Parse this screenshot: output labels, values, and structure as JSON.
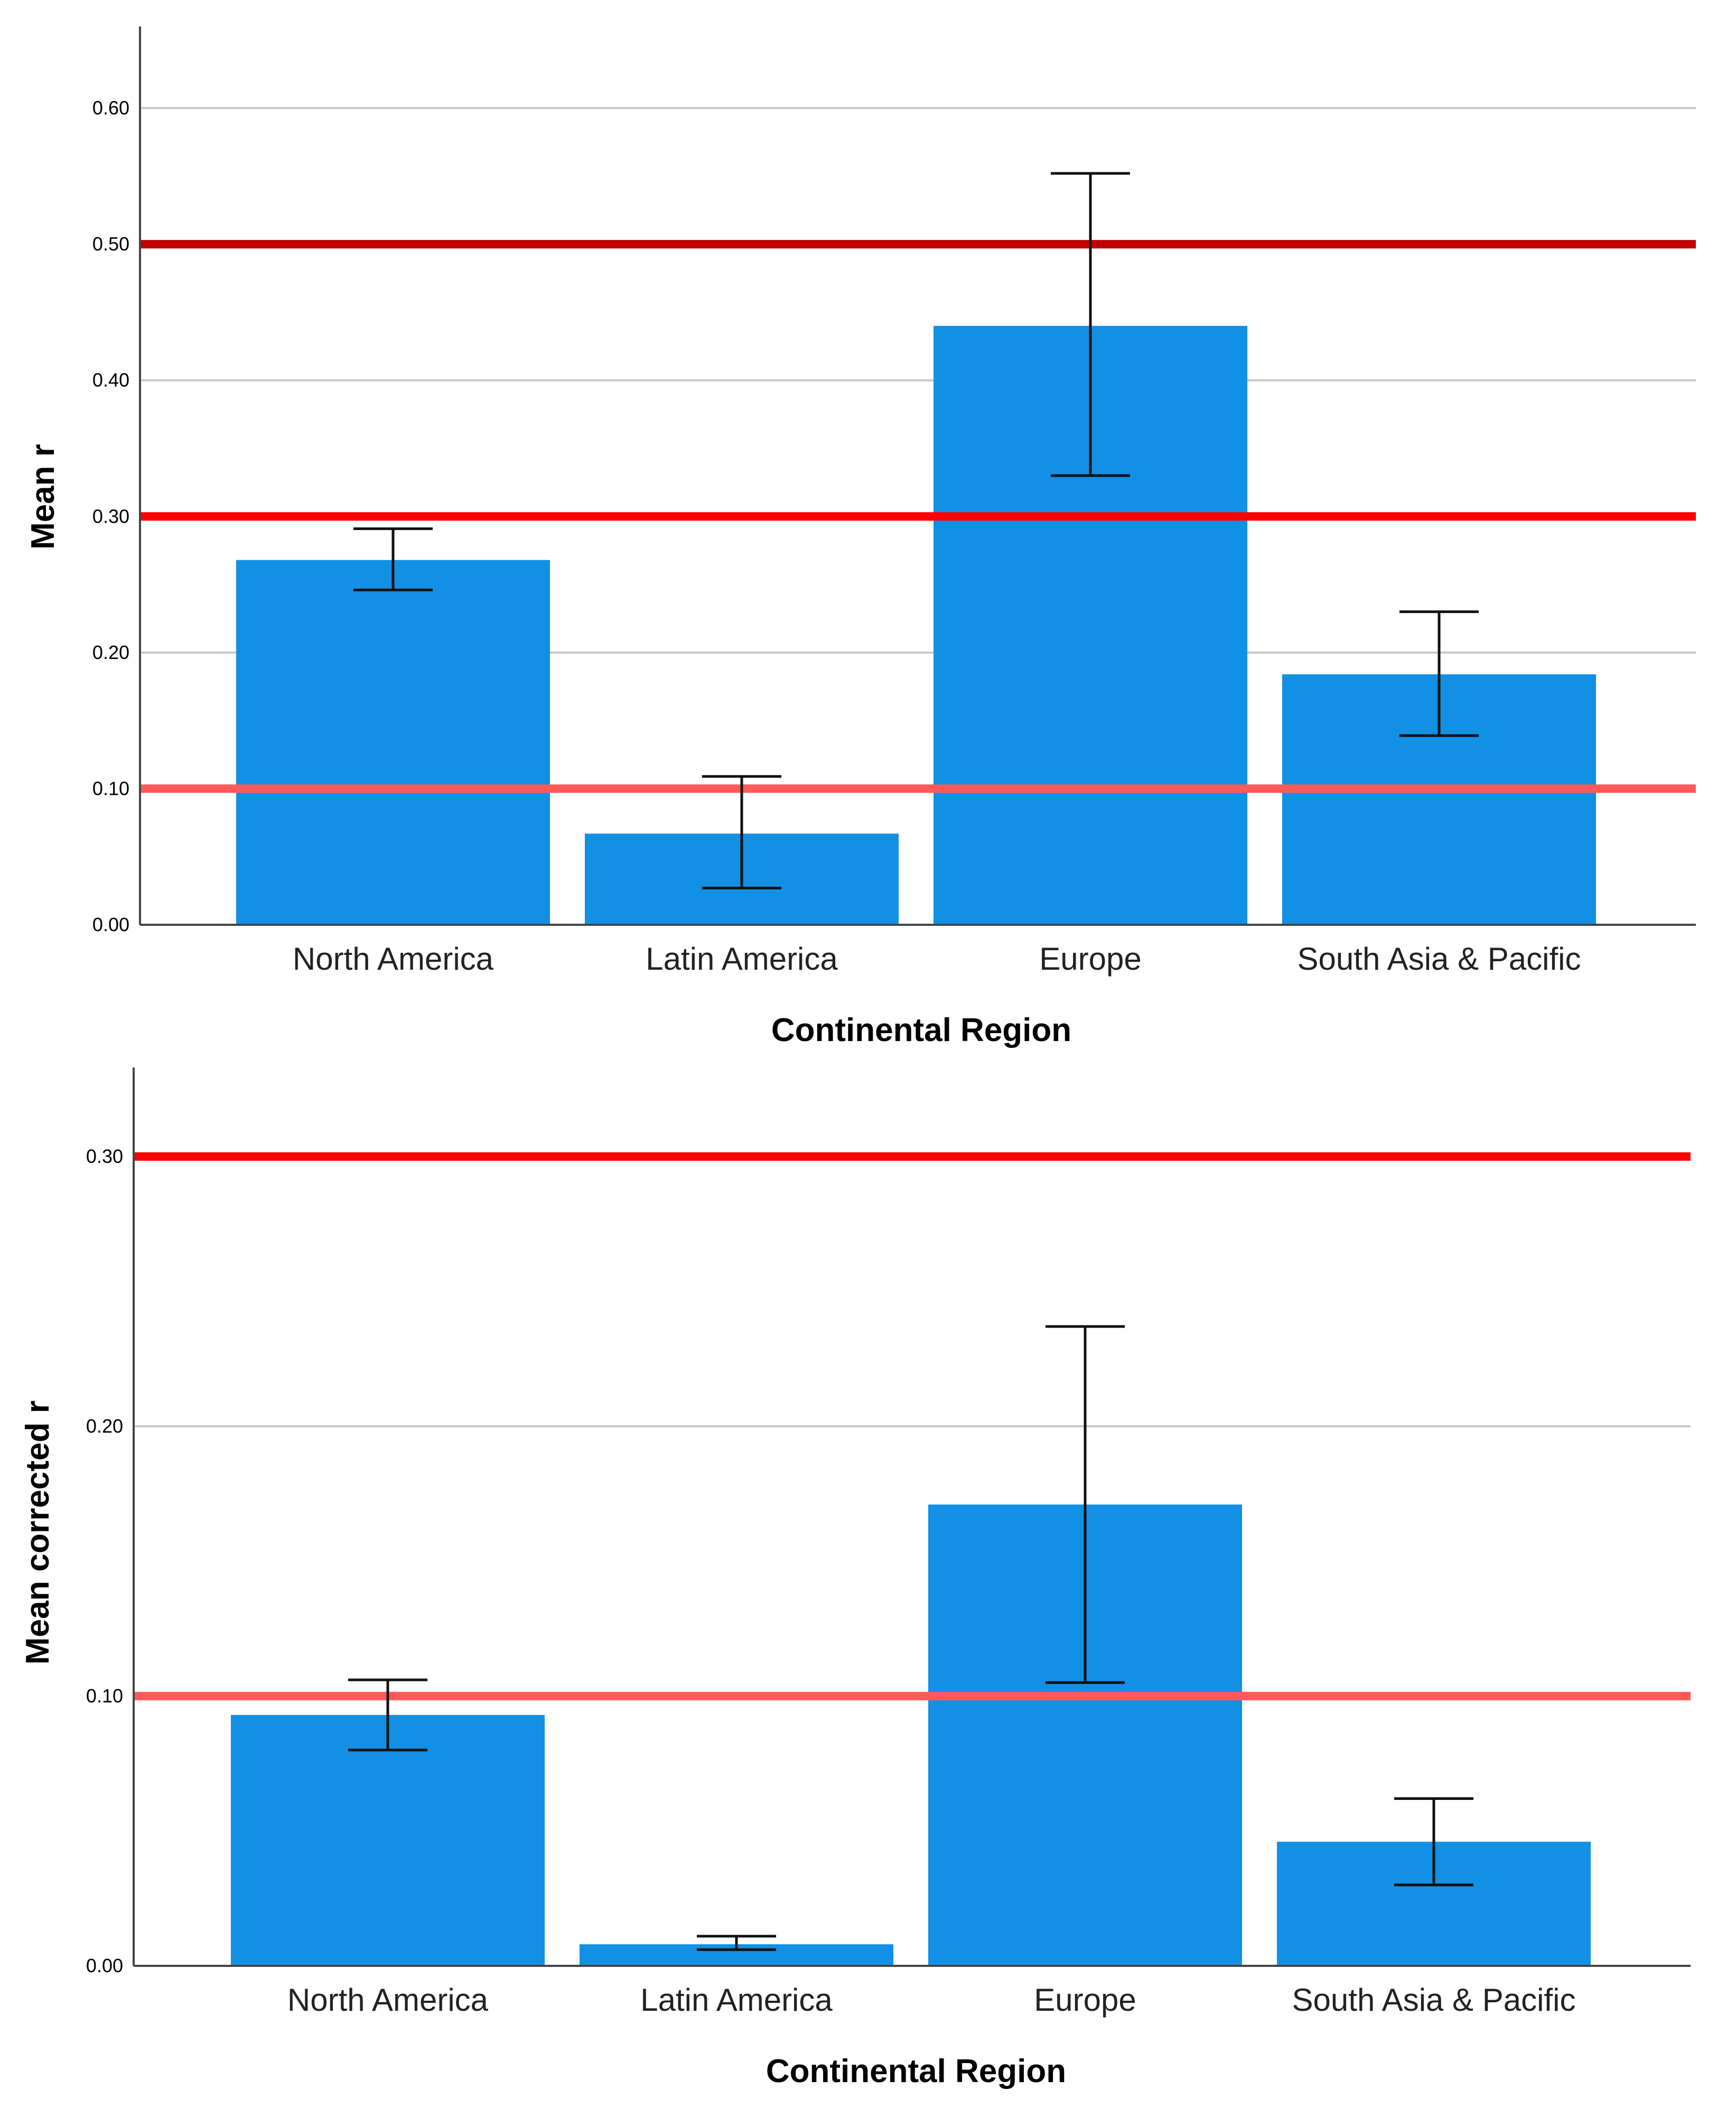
{
  "chart_data": [
    {
      "type": "bar",
      "title": "",
      "xlabel": "Continental Region",
      "ylabel": "Mean r",
      "ylim": [
        0,
        0.66
      ],
      "yticks": [
        0.0,
        0.1,
        0.2,
        0.3,
        0.4,
        0.5,
        0.6
      ],
      "ytick_labels": [
        "0.00",
        "0.10",
        "0.20",
        "0.30",
        "0.40",
        "0.50",
        "0.60"
      ],
      "grid": true,
      "categories": [
        "North America",
        "Latin America",
        "Europe",
        "South Asia & Pacific"
      ],
      "values": [
        0.268,
        0.067,
        0.44,
        0.184
      ],
      "error_low": [
        0.246,
        0.027,
        0.33,
        0.139
      ],
      "error_high": [
        0.291,
        0.109,
        0.552,
        0.23
      ],
      "reference_lines": [
        {
          "value": 0.5,
          "color": "#C00000"
        },
        {
          "value": 0.3,
          "color": "#FF0000"
        },
        {
          "value": 0.1,
          "color": "#FF5A5A"
        }
      ],
      "bar_color": "#1290E4"
    },
    {
      "type": "bar",
      "title": "",
      "xlabel": "Continental Region",
      "ylabel": "Mean corrected  r",
      "ylim": [
        0,
        0.333
      ],
      "yticks": [
        0.0,
        0.1,
        0.2,
        0.3
      ],
      "ytick_labels": [
        "0.00",
        "0.10",
        "0.20",
        "0.30"
      ],
      "grid": true,
      "categories": [
        "North America",
        "Latin America",
        "Europe",
        "South Asia & Pacific"
      ],
      "values": [
        0.093,
        0.008,
        0.171,
        0.046
      ],
      "error_low": [
        0.08,
        0.006,
        0.105,
        0.03
      ],
      "error_high": [
        0.106,
        0.011,
        0.237,
        0.062
      ],
      "reference_lines": [
        {
          "value": 0.3,
          "color": "#FF0000"
        },
        {
          "value": 0.1,
          "color": "#FF5A5A"
        }
      ],
      "bar_color": "#1290E4"
    }
  ]
}
